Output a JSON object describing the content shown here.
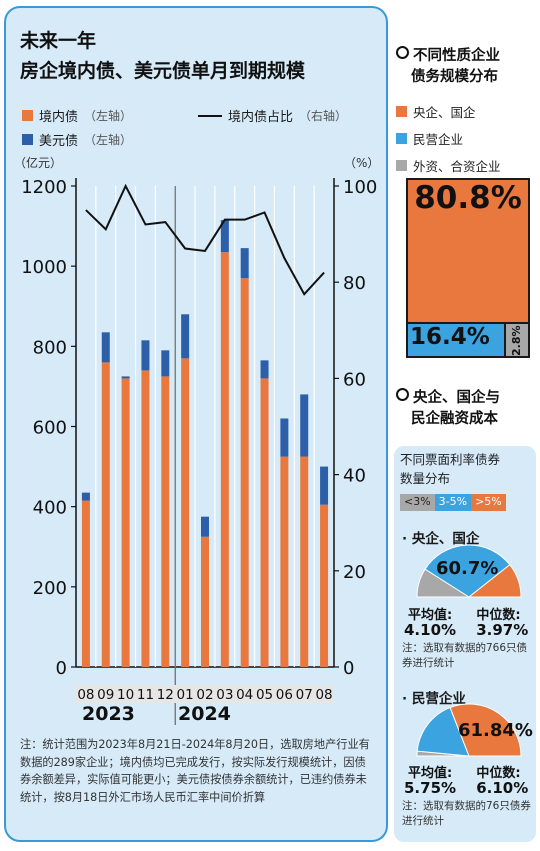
{
  "main": {
    "title_line1": "未来一年",
    "title_line2": "房企境内债、美元债单月到期规模",
    "legend": {
      "domestic": "境内债",
      "usd": "美元债",
      "ratio": "境内债占比",
      "left_axis": "（左轴）",
      "right_axis": "（右轴）"
    },
    "y_left_unit": "（亿元）",
    "y_right_unit": "（%）",
    "year_2023": "2023",
    "year_2024": "2024",
    "note": "注：统计范围为2023年8月21日-2024年8月20日，选取房地产行业有数据的289家企业；境内债均已完成发行，按实际发行规模统计，因债券余额差异，实际值可能更小；美元债按债券余额统计，已违约债券未统计，按8月18日外汇市场人民币汇率中间价折算"
  },
  "chart_data": {
    "type": "bar",
    "categories": [
      "08",
      "09",
      "10",
      "11",
      "12",
      "01",
      "02",
      "03",
      "04",
      "05",
      "06",
      "07",
      "08"
    ],
    "series": [
      {
        "name": "境内债",
        "axis": "left",
        "values": [
          415,
          760,
          720,
          740,
          725,
          770,
          325,
          1035,
          970,
          720,
          525,
          525,
          405
        ]
      },
      {
        "name": "美元债",
        "axis": "left",
        "values": [
          20,
          75,
          5,
          75,
          65,
          110,
          50,
          80,
          75,
          45,
          95,
          155,
          95
        ]
      },
      {
        "name": "境内债占比",
        "axis": "right",
        "type": "line",
        "values": [
          95,
          91,
          100,
          92,
          92.5,
          87,
          86.5,
          93,
          93,
          94.5,
          85,
          77.5,
          82
        ]
      }
    ],
    "y_left": {
      "min": 0,
      "max": 1200,
      "ticks": [
        0,
        200,
        400,
        600,
        800,
        1000,
        1200
      ]
    },
    "y_right": {
      "min": 0,
      "max": 100,
      "ticks": [
        0,
        20,
        40,
        60,
        80,
        100
      ]
    },
    "colors": {
      "domestic": "#e8783e",
      "usd": "#2d5fa8",
      "ratio": "#111111"
    },
    "year_divider_after_index": 4
  },
  "side1": {
    "title_line1": "不同性质企业",
    "title_line2": "债务规模分布",
    "legend": [
      "央企、国企",
      "民营企业",
      "外资、合资企业"
    ],
    "colors": [
      "#e8783e",
      "#3aa3e0",
      "#a8a8a8"
    ],
    "values": [
      80.8,
      16.4,
      2.8
    ],
    "labels": [
      "80.8%",
      "16.4%",
      "2.8%"
    ]
  },
  "side2": {
    "title_line1": "央企、国企与",
    "title_line2": "民企融资成本",
    "sub_title_line1": "不同票面利率债券",
    "sub_title_line2": "数量分布",
    "rate_legend": [
      "<3%",
      "3-5%",
      ">5%"
    ],
    "rate_colors": [
      "#a8a8a8",
      "#3aa3e0",
      "#e8783e"
    ],
    "soe": {
      "name": "央企、国企",
      "pie_values": [
        18.0,
        60.7,
        21.3
      ],
      "highlight": "60.7%",
      "avg_label": "平均值:",
      "avg": "4.10%",
      "median_label": "中位数:",
      "median": "3.97%",
      "note": "注：选取有数据的766只债券进行统计"
    },
    "private": {
      "name": "民营企业",
      "pie_values": [
        3.0,
        35.16,
        61.84
      ],
      "highlight": "61.84%",
      "avg_label": "平均值:",
      "avg": "5.75%",
      "median_label": "中位数:",
      "median": "6.10%",
      "note": "注：选取有数据的76只债券进行统计"
    }
  }
}
